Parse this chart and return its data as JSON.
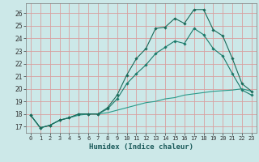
{
  "xlabel": "Humidex (Indice chaleur)",
  "xlim": [
    -0.5,
    23.5
  ],
  "ylim": [
    16.5,
    26.8
  ],
  "xticks": [
    0,
    1,
    2,
    3,
    4,
    5,
    6,
    7,
    8,
    9,
    10,
    11,
    12,
    13,
    14,
    15,
    16,
    17,
    18,
    19,
    20,
    21,
    22,
    23
  ],
  "yticks": [
    17,
    18,
    19,
    20,
    21,
    22,
    23,
    24,
    25,
    26
  ],
  "background_color": "#cce8e8",
  "grid_color": "#d8a0a0",
  "line_color_dark": "#1a6b5a",
  "line_color_mid": "#1a7a6a",
  "line_color_light": "#2a9a8a",
  "line1_y": [
    17.9,
    16.9,
    17.1,
    17.5,
    17.7,
    18.0,
    18.0,
    18.0,
    18.5,
    19.5,
    21.1,
    22.4,
    23.2,
    24.8,
    24.9,
    25.6,
    25.2,
    26.3,
    26.3,
    24.7,
    24.2,
    22.4,
    20.4,
    19.8
  ],
  "line2_y": [
    17.9,
    16.9,
    17.1,
    17.5,
    17.7,
    18.0,
    18.0,
    18.0,
    18.4,
    19.2,
    20.4,
    21.2,
    21.9,
    22.8,
    23.3,
    23.8,
    23.6,
    24.8,
    24.3,
    23.2,
    22.6,
    21.2,
    19.9,
    19.5
  ],
  "line3_y": [
    17.9,
    16.9,
    17.1,
    17.5,
    17.7,
    17.9,
    18.0,
    18.0,
    18.1,
    18.3,
    18.5,
    18.7,
    18.9,
    19.0,
    19.2,
    19.3,
    19.5,
    19.6,
    19.7,
    19.8,
    19.85,
    19.9,
    20.0,
    19.8
  ]
}
